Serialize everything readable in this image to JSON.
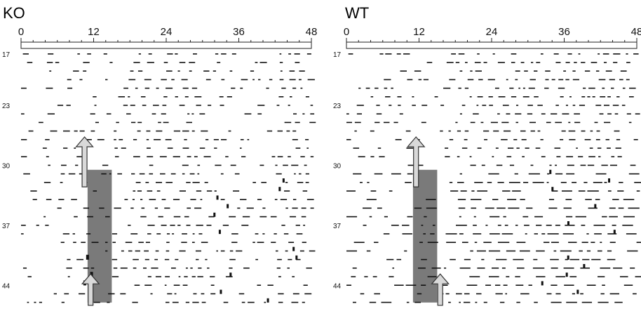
{
  "chart_data": [
    {
      "type": "actogram",
      "title": "KO",
      "x_ticks": [
        "0",
        "12",
        "24",
        "36",
        "48"
      ],
      "xlim": [
        0,
        48
      ],
      "day_labels": [
        "17",
        "23",
        "30",
        "37",
        "44"
      ],
      "days_range": [
        17,
        46
      ],
      "light_pulse": {
        "start_hour": 11,
        "end_hour": 15,
        "from_day": 31
      },
      "arrows": [
        {
          "day_tip": 27,
          "hour": 10.5
        },
        {
          "day_tip": 43,
          "hour": 11.5
        }
      ]
    },
    {
      "type": "actogram",
      "title": "WT",
      "x_ticks": [
        "0",
        "12",
        "24",
        "36",
        "48"
      ],
      "xlim": [
        0,
        48
      ],
      "day_labels": [
        "17",
        "23",
        "30",
        "37",
        "44"
      ],
      "days_range": [
        17,
        46
      ],
      "light_pulse": {
        "start_hour": 11,
        "end_hour": 15,
        "from_day": 31
      },
      "arrows": [
        {
          "day_tip": 27,
          "hour": 11.5
        },
        {
          "day_tip": 43,
          "hour": 15.5
        }
      ]
    }
  ],
  "colors": {
    "activity": "#111111",
    "pulse": "#7a7a7a",
    "arrow": "#d9d9d9",
    "axis": "#222222"
  }
}
